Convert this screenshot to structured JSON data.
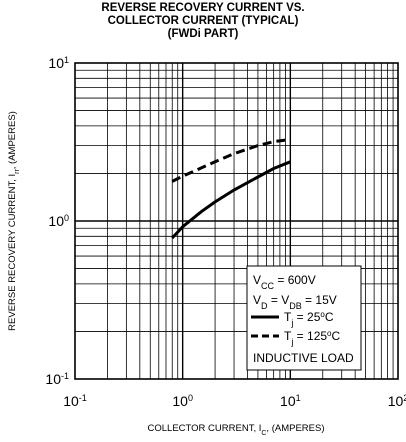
{
  "chart_data": {
    "type": "line",
    "title": [
      "REVERSE RECOVERY CURRENT VS.",
      "COLLECTOR CURRENT (TYPICAL)",
      "(FWDi PART)"
    ],
    "xlabel": {
      "main": "COLLECTOR CURRENT, I",
      "sub": "C",
      "unit": ", (AMPERES)"
    },
    "ylabel": {
      "main": "REVERSE RECOVERY CURRENT, I",
      "sub": "rr",
      "unit": ", (AMPERES)"
    },
    "xscale": "log",
    "yscale": "log",
    "xlim": [
      0.1,
      100
    ],
    "ylim": [
      0.1,
      10
    ],
    "grid": true,
    "x_ticks": [
      {
        "value": 0.1,
        "base": "10",
        "exp": "-1"
      },
      {
        "value": 1,
        "base": "10",
        "exp": "0"
      },
      {
        "value": 10,
        "base": "10",
        "exp": "1"
      },
      {
        "value": 100,
        "base": "10",
        "exp": "2"
      }
    ],
    "y_ticks": [
      {
        "value": 0.1,
        "base": "10",
        "exp": "-1"
      },
      {
        "value": 1,
        "base": "10",
        "exp": "0"
      },
      {
        "value": 10,
        "base": "10",
        "exp": "1"
      }
    ],
    "legend": {
      "position": "bottom-right",
      "conditions": [
        {
          "parts": [
            [
              "V",
              ""
            ],
            [
              "CC",
              "sub"
            ],
            [
              " = 600V",
              ""
            ]
          ]
        },
        {
          "parts": [
            [
              "V",
              ""
            ],
            [
              "D",
              "sub"
            ],
            [
              " = V",
              ""
            ],
            [
              "DB",
              "sub"
            ],
            [
              " = 15V",
              ""
            ]
          ]
        }
      ],
      "footer": "INDUCTIVE LOAD"
    },
    "series": [
      {
        "name_parts": [
          [
            "T",
            ""
          ],
          [
            "j",
            "sub"
          ],
          [
            " = 25",
            ""
          ],
          [
            "o",
            "sup"
          ],
          [
            "C",
            ""
          ]
        ],
        "style": "solid",
        "x": [
          0.8,
          1.0,
          1.5,
          2.0,
          3.0,
          5.0,
          7.0,
          10.0
        ],
        "y": [
          0.78,
          0.92,
          1.15,
          1.32,
          1.57,
          1.9,
          2.15,
          2.37
        ]
      },
      {
        "name_parts": [
          [
            "T",
            ""
          ],
          [
            "j",
            "sub"
          ],
          [
            " = 125",
            ""
          ],
          [
            "o",
            "sup"
          ],
          [
            "C",
            ""
          ]
        ],
        "style": "dashed",
        "x": [
          0.8,
          1.0,
          1.5,
          2.0,
          3.0,
          5.0,
          7.0,
          10.0
        ],
        "y": [
          1.78,
          1.92,
          2.17,
          2.37,
          2.67,
          3.0,
          3.18,
          3.28
        ]
      }
    ]
  }
}
